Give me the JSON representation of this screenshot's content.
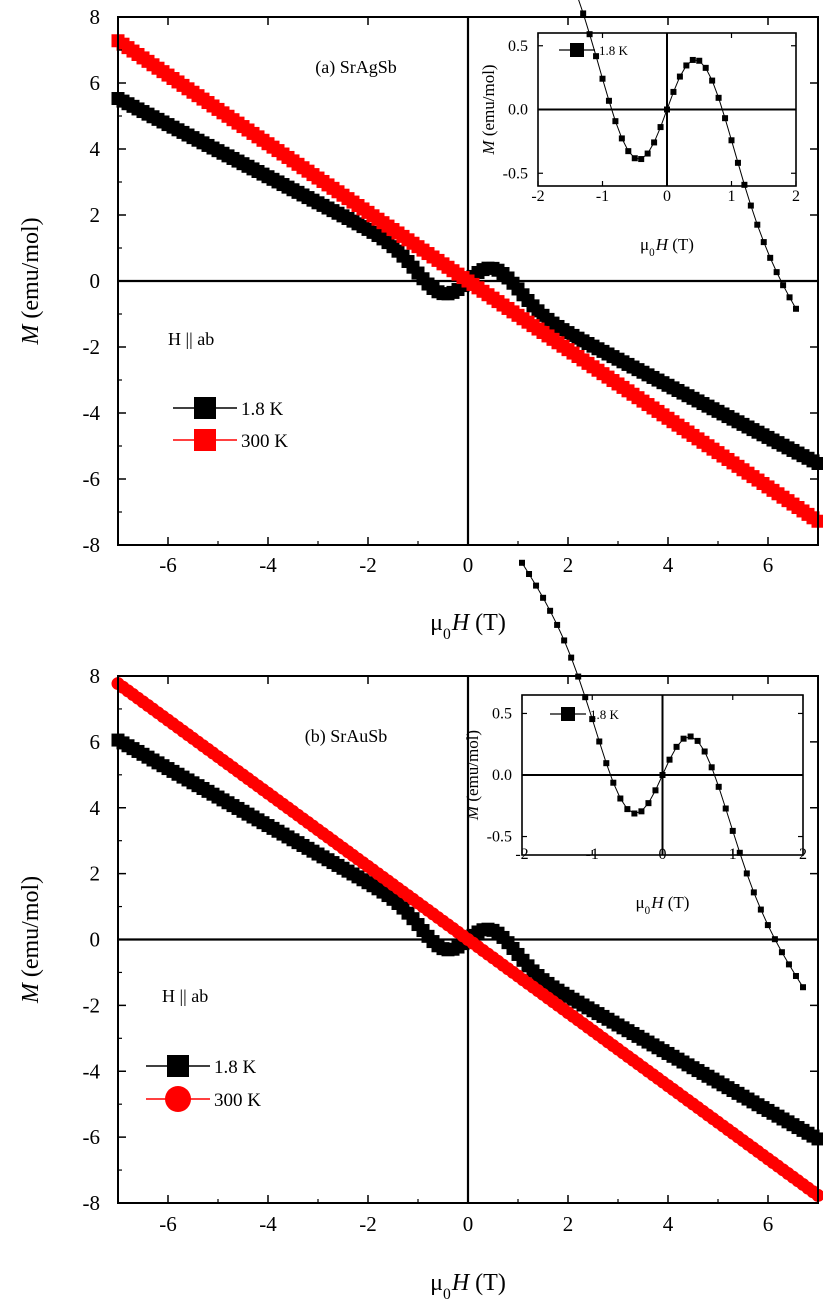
{
  "chart_data": [
    {
      "type": "scatter",
      "panel_label": "(a) SrAgSb",
      "field_label": "H || ab",
      "xlabel": {
        "mu": "μ",
        "sub": "0",
        "var": "H",
        "unit": " (T)"
      },
      "ylabel": {
        "var": "M",
        "unit": " (emu/mol)"
      },
      "xlim": [
        -7,
        7
      ],
      "ylim": [
        -8,
        8
      ],
      "xticks": [
        -6,
        -4,
        -2,
        0,
        2,
        4,
        6
      ],
      "yticks": [
        -8,
        -6,
        -4,
        -2,
        0,
        2,
        4,
        6,
        8
      ],
      "series": [
        {
          "name": "1.8 K",
          "color": "#000000",
          "marker": "square",
          "model": {
            "chi": -0.79,
            "A": 1.32,
            "h0": 0.6,
            "lim": 7
          }
        },
        {
          "name": "300 K",
          "color": "#ff0000",
          "marker": "square",
          "model": {
            "chi": -1.04,
            "A": 0,
            "h0": 1,
            "lim": 7
          }
        }
      ],
      "inset": {
        "type": "line",
        "xlabel": {
          "mu": "μ",
          "sub": "0",
          "var": "H",
          "unit": " (T)"
        },
        "ylabel": {
          "var": "M",
          "unit": " (emu/mol)"
        },
        "xlim": [
          -2,
          2
        ],
        "ylim": [
          -0.6,
          0.6
        ],
        "xticks": [
          -2,
          -1,
          0,
          1,
          2
        ],
        "yticks": [
          -0.5,
          0.0,
          0.5
        ],
        "ytick_labels": [
          "-0.5",
          "0.0",
          "0.5"
        ],
        "series": [
          {
            "name": "1.8 K",
            "color": "#000000",
            "marker": "square",
            "model": {
              "chi": -0.79,
              "A": 1.32,
              "h0": 0.6,
              "lim": 2
            }
          }
        ]
      }
    },
    {
      "type": "scatter",
      "panel_label": "(b) SrAuSb",
      "field_label": "H || ab",
      "xlabel": {
        "mu": "μ",
        "sub": "0",
        "var": "H",
        "unit": " (T)"
      },
      "ylabel": {
        "var": "M",
        "unit": " (emu/mol)"
      },
      "xlim": [
        -7,
        7
      ],
      "ylim": [
        -8,
        8
      ],
      "xticks": [
        -6,
        -4,
        -2,
        0,
        2,
        4,
        6
      ],
      "yticks": [
        -8,
        -6,
        -4,
        -2,
        0,
        2,
        4,
        6,
        8
      ],
      "series": [
        {
          "name": "1.8 K",
          "color": "#000000",
          "marker": "square",
          "model": {
            "chi": -0.865,
            "A": 1.18,
            "h0": 0.55,
            "lim": 7
          }
        },
        {
          "name": "300 K",
          "color": "#ff0000",
          "marker": "circle",
          "model": {
            "chi": -1.11,
            "A": 0,
            "h0": 1,
            "lim": 7
          }
        }
      ],
      "inset": {
        "type": "line",
        "xlabel": {
          "mu": "μ",
          "sub": "0",
          "var": "H",
          "unit": " (T)"
        },
        "ylabel": {
          "var": "M",
          "unit": " (emu/mol)"
        },
        "xlim": [
          -2,
          2
        ],
        "ylim": [
          -0.65,
          0.65
        ],
        "xticks": [
          -2,
          -1,
          0,
          1,
          2
        ],
        "yticks": [
          -0.5,
          0.0,
          0.5
        ],
        "ytick_labels": [
          "-0.5",
          "0.0",
          "0.5"
        ],
        "series": [
          {
            "name": "1.8 K",
            "color": "#000000",
            "marker": "square",
            "model": {
              "chi": -0.865,
              "A": 1.18,
              "h0": 0.55,
              "lim": 2
            }
          }
        ]
      }
    }
  ]
}
